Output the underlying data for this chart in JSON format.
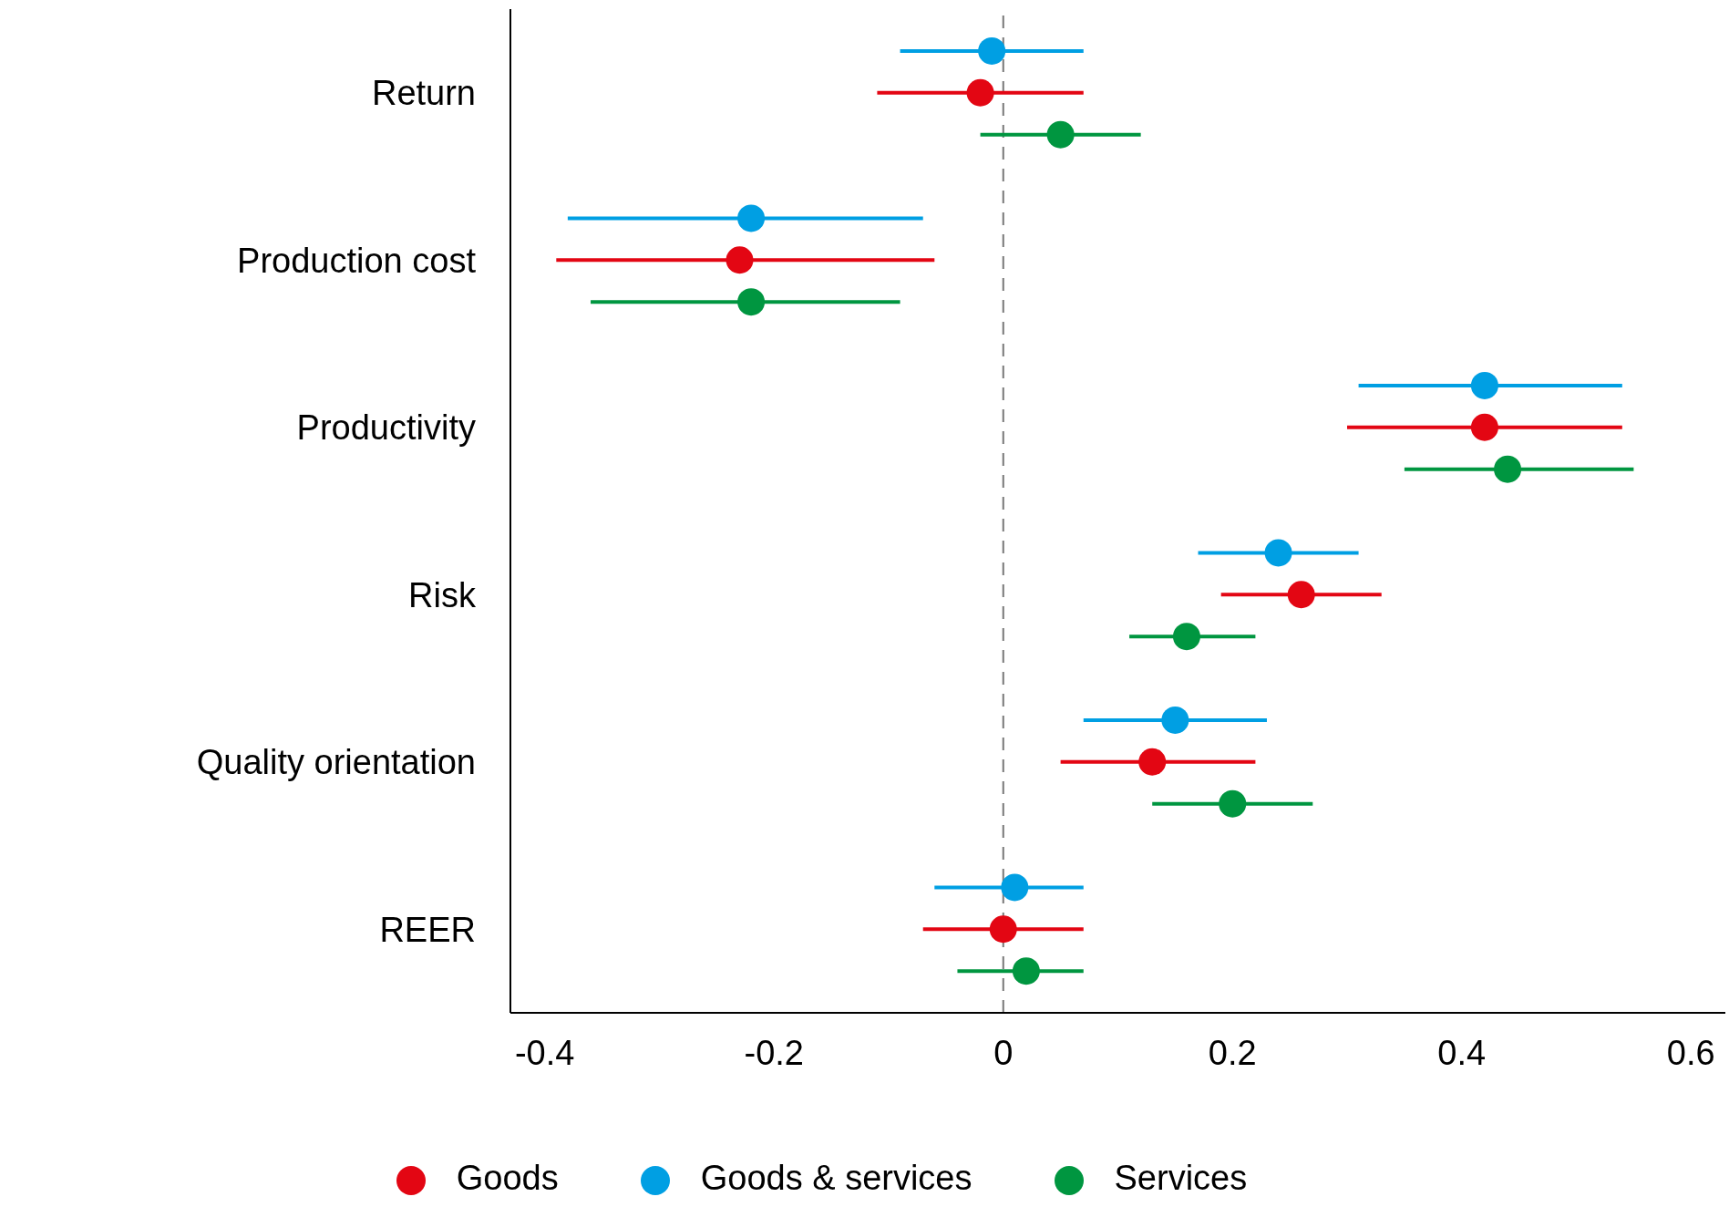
{
  "chart_data": {
    "type": "scatter",
    "orientation": "horizontal",
    "categories": [
      "Return",
      "Production cost",
      "Productivity",
      "Risk",
      "Quality orientation",
      "REER"
    ],
    "series": [
      {
        "name": "Goods & services",
        "color": "#009fe3",
        "values": [
          -0.01,
          -0.22,
          0.42,
          0.24,
          0.15,
          0.01
        ],
        "errors": [
          [
            -0.09,
            0.07
          ],
          [
            -0.38,
            -0.07
          ],
          [
            0.31,
            0.54
          ],
          [
            0.17,
            0.31
          ],
          [
            0.07,
            0.23
          ],
          [
            -0.06,
            0.07
          ]
        ]
      },
      {
        "name": "Goods",
        "color": "#e30613",
        "values": [
          -0.02,
          -0.23,
          0.42,
          0.26,
          0.13,
          0.0
        ],
        "errors": [
          [
            -0.11,
            0.07
          ],
          [
            -0.39,
            -0.06
          ],
          [
            0.3,
            0.54
          ],
          [
            0.19,
            0.33
          ],
          [
            0.05,
            0.22
          ],
          [
            -0.07,
            0.07
          ]
        ]
      },
      {
        "name": "Services",
        "color": "#009640",
        "values": [
          0.05,
          -0.22,
          0.44,
          0.16,
          0.2,
          0.02
        ],
        "errors": [
          [
            -0.02,
            0.12
          ],
          [
            -0.36,
            -0.09
          ],
          [
            0.35,
            0.55
          ],
          [
            0.11,
            0.22
          ],
          [
            0.13,
            0.27
          ],
          [
            -0.04,
            0.07
          ]
        ]
      }
    ],
    "xlim": [
      -0.43,
      0.63
    ],
    "xticks": [
      -0.4,
      -0.2,
      0,
      0.2,
      0.4,
      0.6
    ],
    "ref_lines": [
      {
        "axis": "x",
        "value": 0,
        "color": "#777777",
        "line_style": "dashed"
      }
    ],
    "marker": "circle",
    "legend": "bottom",
    "grid": false
  }
}
